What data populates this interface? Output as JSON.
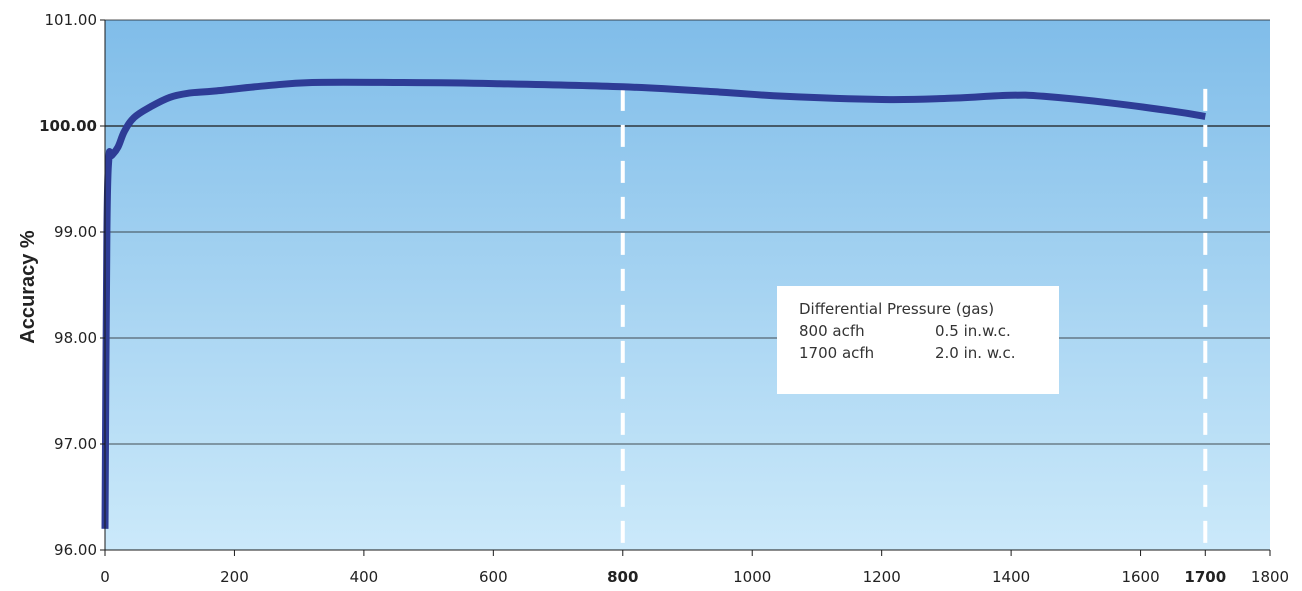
{
  "chart_data": {
    "type": "line",
    "title": "",
    "xlabel": "",
    "ylabel": "Accuracy %",
    "xlim": [
      0,
      1800
    ],
    "ylim": [
      96,
      101
    ],
    "x_ticks": [
      0,
      200,
      400,
      600,
      800,
      1000,
      1200,
      1400,
      1600,
      1700,
      1800
    ],
    "x_tick_labels": [
      "0",
      "200",
      "400",
      "600",
      "800",
      "1000",
      "1200",
      "1400",
      "1600",
      "1700",
      "1800"
    ],
    "x_bold_ticks": [
      800,
      1700
    ],
    "y_ticks": [
      96,
      97,
      98,
      99,
      100,
      101
    ],
    "y_tick_labels": [
      "96.00",
      "97.00",
      "98.00",
      "99.00",
      "100.00",
      "101.00"
    ],
    "y_bold_ticks": [
      100
    ],
    "grid": "horizontal",
    "reference_lines": [
      {
        "axis": "x",
        "value": 800,
        "style": "dashed",
        "color": "#ffffff"
      },
      {
        "axis": "x",
        "value": 1700,
        "style": "dashed",
        "color": "#ffffff"
      }
    ],
    "series": [
      {
        "color": "#2e3c96",
        "x": [
          0,
          3,
          6,
          10,
          20,
          30,
          45,
          70,
          100,
          130,
          170,
          250,
          320,
          450,
          600,
          800,
          950,
          1050,
          1200,
          1300,
          1400,
          1450,
          1550,
          1650,
          1700
        ],
        "y": [
          96.2,
          99.0,
          99.7,
          99.72,
          99.8,
          99.95,
          100.08,
          100.18,
          100.27,
          100.31,
          100.33,
          100.38,
          100.41,
          100.41,
          100.4,
          100.37,
          100.32,
          100.28,
          100.25,
          100.26,
          100.29,
          100.28,
          100.22,
          100.14,
          100.09
        ]
      }
    ],
    "background_gradient": [
      "#80bde9",
      "#cbe9fa"
    ]
  },
  "annotation": {
    "title": "Differential Pressure (gas)",
    "rows": [
      {
        "flow": "800 acfh",
        "pressure": "0.5 in.w.c."
      },
      {
        "flow": "1700 acfh",
        "pressure": "2.0 in. w.c."
      }
    ]
  }
}
